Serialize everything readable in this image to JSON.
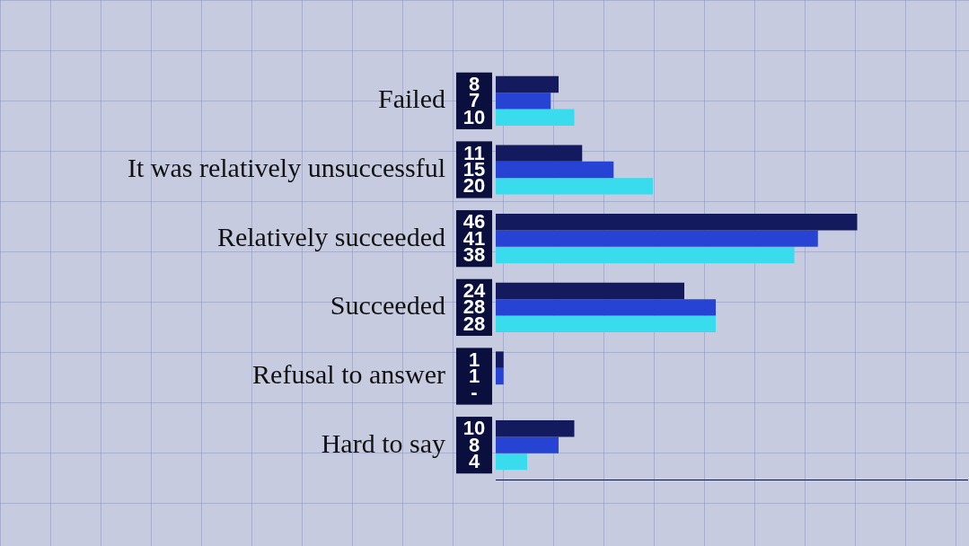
{
  "chart_data": {
    "type": "bar",
    "orientation": "horizontal",
    "categories": [
      "Failed",
      "It was relatively unsuccessful",
      "Relatively succeeded",
      "Succeeded",
      "Refusal to answer",
      "Hard to say"
    ],
    "series": [
      {
        "color": "#141a5e",
        "values": [
          8,
          11,
          46,
          24,
          1,
          10
        ]
      },
      {
        "color": "#2643d4",
        "values": [
          7,
          15,
          41,
          28,
          1,
          8
        ]
      },
      {
        "color": "#38dcec",
        "values": [
          10,
          20,
          38,
          28,
          null,
          4
        ],
        "value_labels": [
          "10",
          "20",
          "38",
          "28",
          "-",
          "4"
        ]
      }
    ],
    "xlim": [
      0,
      60
    ],
    "xticks": [],
    "grid": false,
    "data_labels": true,
    "tick_labels": "y"
  }
}
